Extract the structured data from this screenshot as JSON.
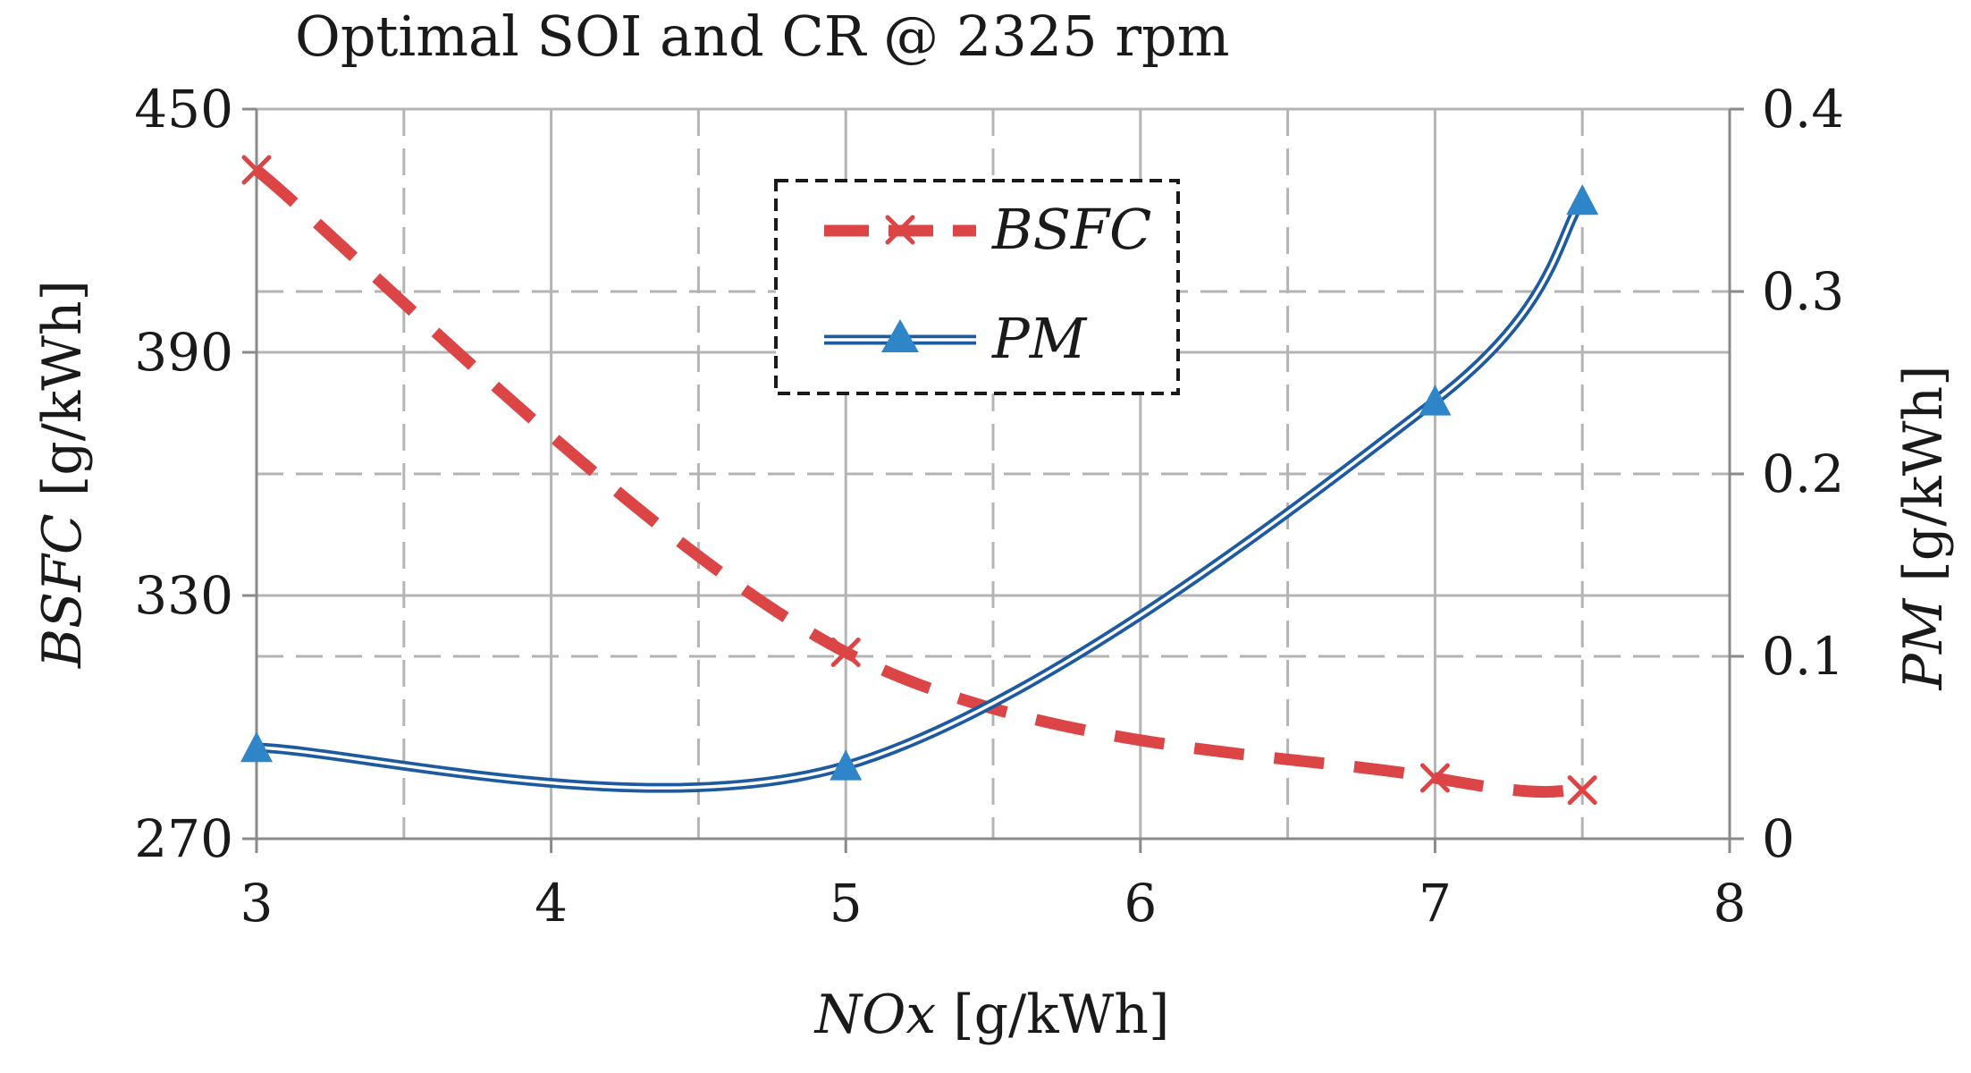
{
  "chart_data": {
    "type": "line",
    "title": "Optimal SOI and CR @ 2325 rpm",
    "xlabel": {
      "italic": "NOx",
      "unit": " [g/kWh]"
    },
    "ylabel_left": {
      "italic": "BSFC",
      "unit": " [g/kWh]"
    },
    "ylabel_right": {
      "italic": "PM",
      "unit": " [g/kWh]"
    },
    "xlim": [
      3,
      8
    ],
    "ylim_left": [
      270,
      450
    ],
    "ylim_right": [
      0,
      0.4
    ],
    "x_ticks": [
      3,
      4,
      5,
      6,
      7,
      8
    ],
    "x_tick_labels": [
      "3",
      "4",
      "5",
      "6",
      "7",
      "8"
    ],
    "y_left_ticks": [
      270,
      330,
      390,
      450
    ],
    "y_left_tick_labels": [
      "270",
      "330",
      "390",
      "450"
    ],
    "y_right_ticks": [
      0,
      0.1,
      0.2,
      0.3,
      0.4
    ],
    "y_right_tick_labels": [
      "0",
      "0.1",
      "0.2",
      "0.3",
      "0.4"
    ],
    "grid": true,
    "legend_position": "top-center",
    "series": [
      {
        "name": "BSFC",
        "axis": "left",
        "color": "#dc4545",
        "marker": "x",
        "style": "dashed",
        "x": [
          3,
          5,
          7,
          7.5
        ],
        "y": [
          435,
          316,
          285,
          282
        ]
      },
      {
        "name": "PM",
        "axis": "right",
        "color": "#1d5aa0",
        "marker_color": "#2e86c8",
        "marker": "triangle",
        "style": "double-line",
        "x": [
          3,
          5,
          7,
          7.5
        ],
        "y": [
          0.05,
          0.04,
          0.24,
          0.35
        ]
      }
    ]
  }
}
